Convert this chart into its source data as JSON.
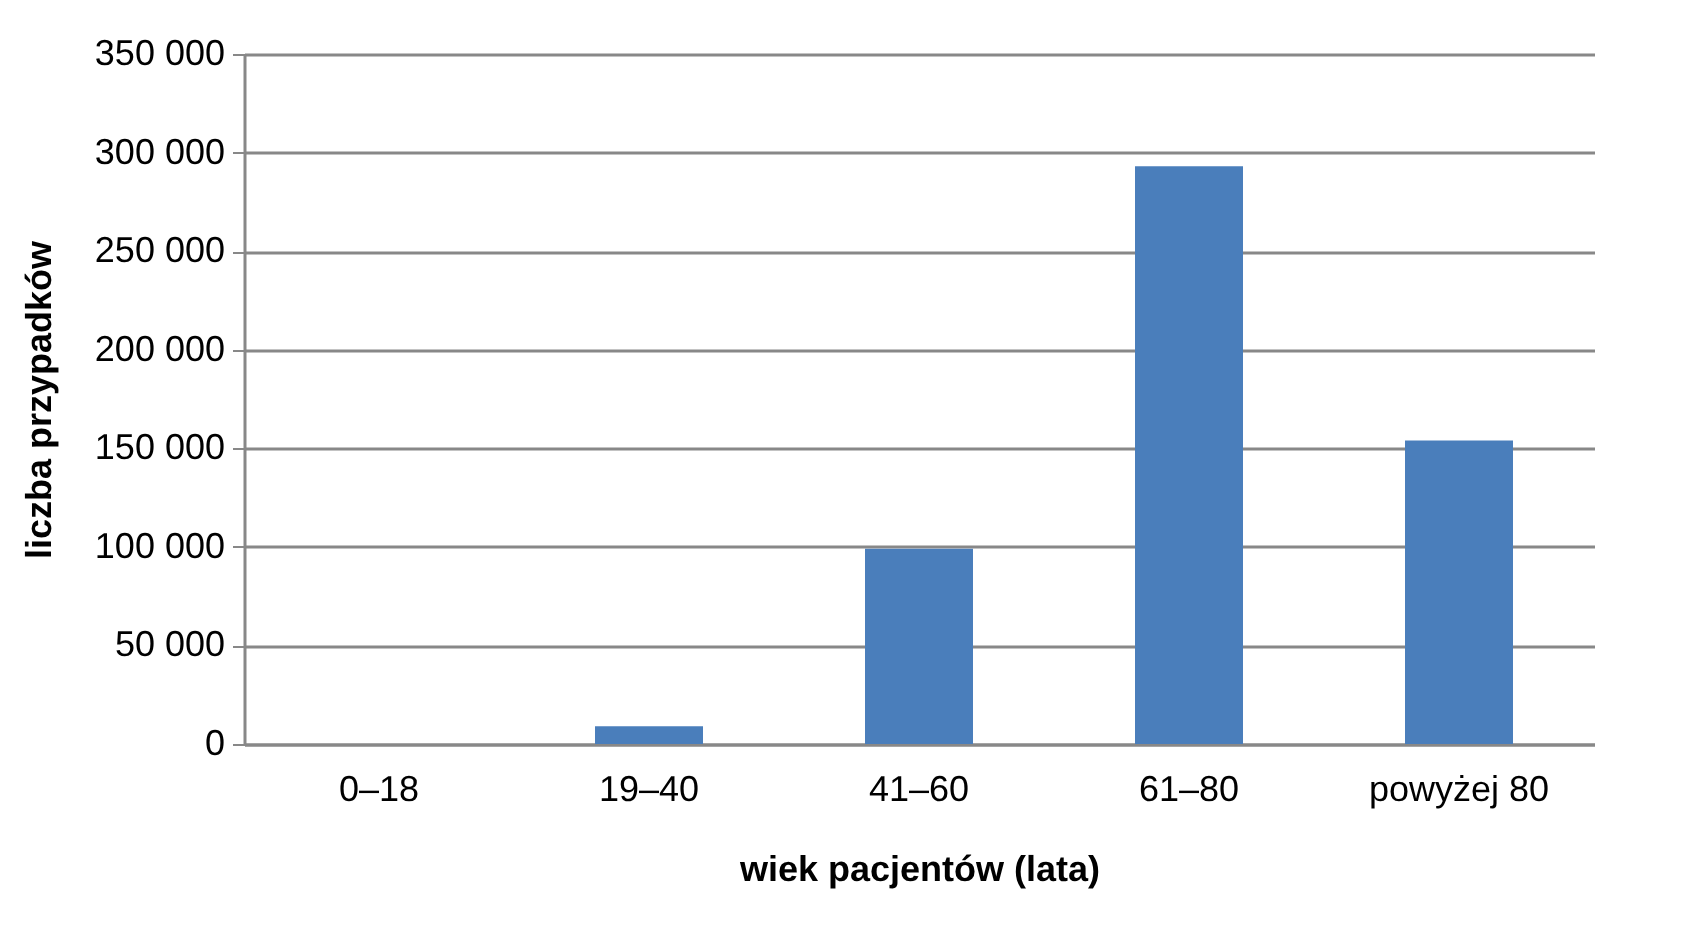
{
  "chart_data": {
    "type": "bar",
    "xlabel": "wiek pacjentów (lata)",
    "ylabel": "liczba przypadków",
    "categories": [
      "0–18",
      "19–40",
      "41–60",
      "61–80",
      "powyżej 80"
    ],
    "values": [
      0,
      9000,
      99000,
      293000,
      154000
    ],
    "color": "#4a7ebb",
    "ylim": [
      0,
      350000
    ],
    "yticks": [
      {
        "value": 0,
        "label": "0"
      },
      {
        "value": 50000,
        "label": "50 000"
      },
      {
        "value": 100000,
        "label": "100 000"
      },
      {
        "value": 150000,
        "label": "150 000"
      },
      {
        "value": 200000,
        "label": "200 000"
      },
      {
        "value": 250000,
        "label": "250 000"
      },
      {
        "value": 300000,
        "label": "300 000"
      },
      {
        "value": 350000,
        "label": "350 000"
      }
    ],
    "grid": "y"
  }
}
